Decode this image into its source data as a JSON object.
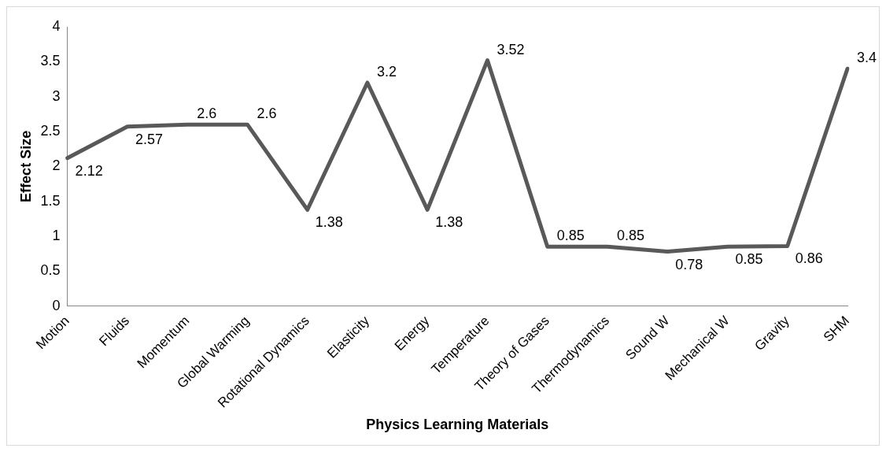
{
  "chart_data": {
    "type": "line",
    "xlabel": "Physics Learning Materials",
    "ylabel": "Effect Size",
    "categories": [
      "Motion",
      "Fluids",
      "Momentum",
      "Global Warming",
      "Rotational Dynamics",
      "Elasticity",
      "Energy",
      "Temperature",
      "Theory of Gases",
      "Thermodynamics",
      "Sound W",
      "Mechanical W",
      "Gravity",
      "SHM"
    ],
    "series": [
      {
        "color": "#595959",
        "values": [
          2.12,
          2.57,
          2.6,
          2.6,
          1.38,
          3.2,
          1.38,
          3.52,
          0.85,
          0.85,
          0.78,
          0.85,
          0.86,
          3.4
        ]
      }
    ],
    "ylim": [
      0,
      4
    ],
    "yticks": [
      0,
      0.5,
      1,
      1.5,
      2,
      2.5,
      3,
      3.5,
      4
    ],
    "grid": false,
    "legend": false,
    "marker": "none",
    "line_style": "solid",
    "data_labels": true
  }
}
